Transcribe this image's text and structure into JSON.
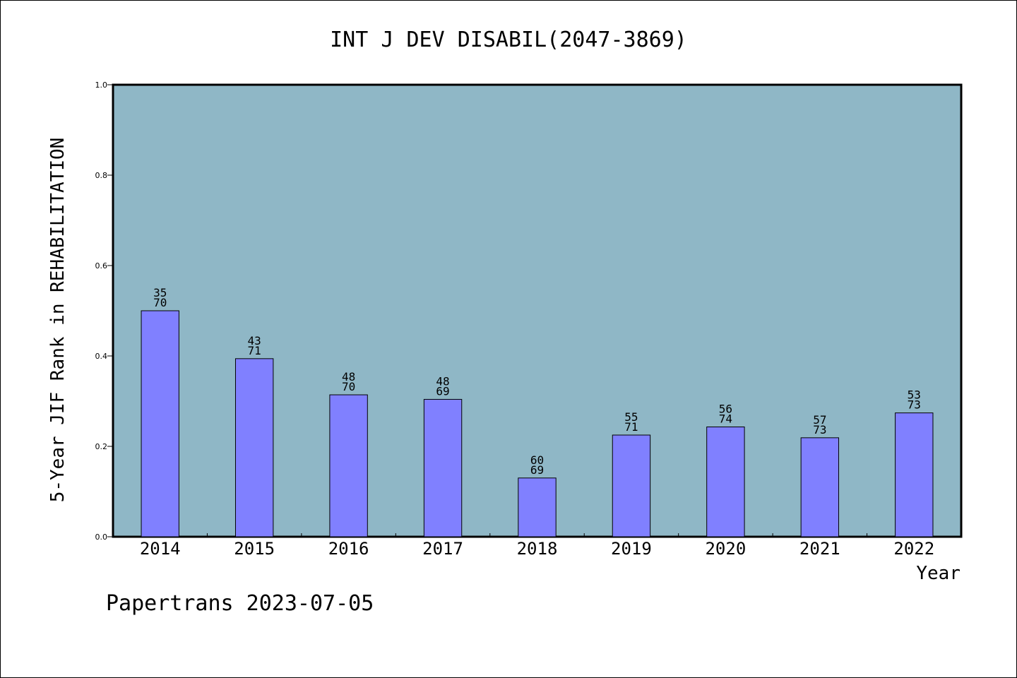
{
  "chart_data": {
    "type": "bar",
    "title": "INT J DEV DISABIL(2047-3869)",
    "xlabel": "Year",
    "ylabel": "5-Year JIF Rank in REHABILITATION",
    "ylim": [
      0,
      1.0
    ],
    "yticks": [
      "0.0",
      "0.2",
      "0.4",
      "0.6",
      "0.8",
      "1.0"
    ],
    "categories": [
      "2014",
      "2015",
      "2016",
      "2017",
      "2018",
      "2019",
      "2020",
      "2021",
      "2022"
    ],
    "values": [
      0.5,
      0.394,
      0.314,
      0.304,
      0.13,
      0.225,
      0.243,
      0.219,
      0.274
    ],
    "rank_labels": [
      "35",
      "43",
      "48",
      "48",
      "60",
      "55",
      "56",
      "57",
      "53"
    ],
    "total_labels": [
      "70",
      "71",
      "70",
      "69",
      "69",
      "71",
      "74",
      "73",
      "73"
    ],
    "grid": false,
    "legend": "none"
  },
  "footer": {
    "text": "Papertrans 2023-07-05"
  },
  "colors": {
    "plot_background": "#8fb7c6",
    "bar_fill": "#8080ff",
    "bar_stroke": "#000000",
    "axis": "#000000"
  }
}
